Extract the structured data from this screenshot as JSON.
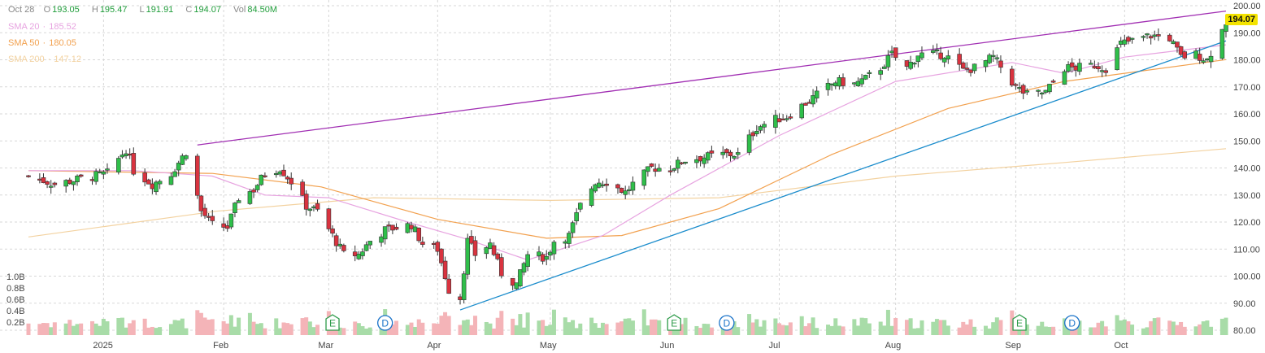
{
  "header": {
    "date": "Oct 28",
    "open_label": "O",
    "open": "193.05",
    "high_label": "H",
    "high": "195.47",
    "low_label": "L",
    "low": "191.91",
    "close_label": "C",
    "close": "194.07",
    "vol_label": "Vol",
    "vol": "84.50M"
  },
  "indicators": [
    {
      "label": "SMA 20",
      "value": "185.52",
      "color": "#e7a3e0"
    },
    {
      "label": "SMA 50",
      "value": "180.05",
      "color": "#f2a14f"
    },
    {
      "label": "SMA 200",
      "value": "147.12",
      "color": "#f3d2a0"
    }
  ],
  "last_price_label": "194.07",
  "colors": {
    "up": "#2fbf4a",
    "down": "#d9333f",
    "vol_up": "#a8dca8",
    "vol_down": "#f4b4b8",
    "resistance": "#a12fb3",
    "support": "#1a8ccc",
    "grid": "#d7d7d7"
  },
  "chart_data": {
    "type": "candlestick",
    "y_axis": {
      "min": 80,
      "max": 200,
      "ticks": [
        "80.00",
        "90.00",
        "100.00",
        "110.00",
        "120.00",
        "130.00",
        "140.00",
        "150.00",
        "160.00",
        "170.00",
        "180.00",
        "190.00",
        "200.00"
      ]
    },
    "volume_axis": {
      "ticks": [
        "0.2B",
        "0.4B",
        "0.6B",
        "0.8B",
        "1.0B"
      ]
    },
    "x_labels": [
      {
        "label": "2025",
        "date": "2025-01-02"
      },
      {
        "label": "Feb",
        "date": "2025-02-03"
      },
      {
        "label": "Mar",
        "date": "2025-03-03"
      },
      {
        "label": "Apr",
        "date": "2025-04-01"
      },
      {
        "label": "May",
        "date": "2025-05-01"
      },
      {
        "label": "Jun",
        "date": "2025-06-02"
      },
      {
        "label": "Jul",
        "date": "2025-07-01"
      },
      {
        "label": "Aug",
        "date": "2025-08-01"
      },
      {
        "label": "Sep",
        "date": "2025-09-02"
      },
      {
        "label": "Oct",
        "date": "2025-10-01"
      }
    ],
    "close_path": [
      [
        "2024-12-13",
        137
      ],
      [
        "2024-12-20",
        134
      ],
      [
        "2024-12-27",
        136
      ],
      [
        "2025-01-03",
        138
      ],
      [
        "2025-01-08",
        147
      ],
      [
        "2025-01-10",
        139
      ],
      [
        "2025-01-15",
        134
      ],
      [
        "2025-01-20",
        138
      ],
      [
        "2025-01-24",
        146
      ],
      [
        "2025-01-28",
        124
      ],
      [
        "2025-01-31",
        119
      ],
      [
        "2025-02-04",
        118
      ],
      [
        "2025-02-07",
        129
      ],
      [
        "2025-02-11",
        132
      ],
      [
        "2025-02-14",
        138
      ],
      [
        "2025-02-18",
        140
      ],
      [
        "2025-02-21",
        135
      ],
      [
        "2025-02-25",
        126
      ],
      [
        "2025-02-28",
        124
      ],
      [
        "2025-03-04",
        115
      ],
      [
        "2025-03-07",
        108
      ],
      [
        "2025-03-11",
        108
      ],
      [
        "2025-03-14",
        113
      ],
      [
        "2025-03-18",
        117
      ],
      [
        "2025-03-21",
        118
      ],
      [
        "2025-03-25",
        119
      ],
      [
        "2025-03-28",
        112
      ],
      [
        "2025-04-01",
        110
      ],
      [
        "2025-04-04",
        95
      ],
      [
        "2025-04-07",
        92
      ],
      [
        "2025-04-09",
        113
      ],
      [
        "2025-04-11",
        108
      ],
      [
        "2025-04-15",
        112
      ],
      [
        "2025-04-18",
        101
      ],
      [
        "2025-04-22",
        97
      ],
      [
        "2025-04-25",
        108
      ],
      [
        "2025-04-30",
        107
      ],
      [
        "2025-05-02",
        113
      ],
      [
        "2025-05-06",
        115
      ],
      [
        "2025-05-09",
        126
      ],
      [
        "2025-05-13",
        135
      ],
      [
        "2025-05-16",
        135
      ],
      [
        "2025-05-21",
        131
      ],
      [
        "2025-05-23",
        134
      ],
      [
        "2025-05-28",
        140
      ],
      [
        "2025-06-02",
        140
      ],
      [
        "2025-06-06",
        143
      ],
      [
        "2025-06-11",
        144
      ],
      [
        "2025-06-16",
        145
      ],
      [
        "2025-06-20",
        145
      ],
      [
        "2025-06-25",
        155
      ],
      [
        "2025-06-30",
        158
      ],
      [
        "2025-07-03",
        159
      ],
      [
        "2025-07-08",
        164
      ],
      [
        "2025-07-11",
        167
      ],
      [
        "2025-07-16",
        172
      ],
      [
        "2025-07-21",
        171
      ],
      [
        "2025-07-24",
        173
      ],
      [
        "2025-07-28",
        177
      ],
      [
        "2025-07-31",
        182
      ],
      [
        "2025-08-04",
        177
      ],
      [
        "2025-08-07",
        182
      ],
      [
        "2025-08-11",
        182
      ],
      [
        "2025-08-14",
        182
      ],
      [
        "2025-08-19",
        176
      ],
      [
        "2025-08-22",
        177
      ],
      [
        "2025-08-27",
        181
      ],
      [
        "2025-09-02",
        170
      ],
      [
        "2025-09-05",
        167
      ],
      [
        "2025-09-10",
        168
      ],
      [
        "2025-09-15",
        177
      ],
      [
        "2025-09-18",
        177
      ],
      [
        "2025-09-23",
        178
      ],
      [
        "2025-09-26",
        177
      ],
      [
        "2025-09-30",
        186
      ],
      [
        "2025-10-03",
        187
      ],
      [
        "2025-10-08",
        189
      ],
      [
        "2025-10-13",
        188
      ],
      [
        "2025-10-16",
        181
      ],
      [
        "2025-10-20",
        182
      ],
      [
        "2025-10-23",
        180
      ],
      [
        "2025-10-27",
        191
      ],
      [
        "2025-10-28",
        194.07
      ]
    ],
    "sma20": [
      [
        "2024-12-13",
        139
      ],
      [
        "2025-01-10",
        139
      ],
      [
        "2025-01-31",
        137
      ],
      [
        "2025-02-14",
        130
      ],
      [
        "2025-03-03",
        129
      ],
      [
        "2025-03-24",
        120
      ],
      [
        "2025-04-08",
        114
      ],
      [
        "2025-04-25",
        106
      ],
      [
        "2025-05-15",
        115
      ],
      [
        "2025-06-02",
        130
      ],
      [
        "2025-07-01",
        152
      ],
      [
        "2025-08-01",
        172
      ],
      [
        "2025-09-01",
        179
      ],
      [
        "2025-09-15",
        175
      ],
      [
        "2025-10-01",
        181
      ],
      [
        "2025-10-28",
        185.52
      ]
    ],
    "sma50": [
      [
        "2024-12-13",
        139
      ],
      [
        "2025-01-31",
        138
      ],
      [
        "2025-03-01",
        133
      ],
      [
        "2025-04-01",
        121
      ],
      [
        "2025-04-30",
        114
      ],
      [
        "2025-05-20",
        115
      ],
      [
        "2025-06-15",
        125
      ],
      [
        "2025-07-15",
        145
      ],
      [
        "2025-08-15",
        162
      ],
      [
        "2025-09-15",
        172
      ],
      [
        "2025-10-28",
        180.05
      ]
    ],
    "sma200": [
      [
        "2024-12-13",
        114.5
      ],
      [
        "2025-02-01",
        124
      ],
      [
        "2025-03-15",
        129
      ],
      [
        "2025-05-01",
        128
      ],
      [
        "2025-06-15",
        129
      ],
      [
        "2025-08-01",
        137
      ],
      [
        "2025-09-15",
        142
      ],
      [
        "2025-10-28",
        147.12
      ]
    ],
    "trendlines": [
      {
        "name": "resistance",
        "from": [
          "2025-01-27",
          148.5
        ],
        "to": [
          "2025-10-28",
          198
        ]
      },
      {
        "name": "support",
        "from": [
          "2025-04-07",
          87.5
        ],
        "to": [
          "2025-10-28",
          187
        ]
      }
    ],
    "events": [
      {
        "type": "E",
        "date": "2025-03-04"
      },
      {
        "type": "D",
        "date": "2025-03-18"
      },
      {
        "type": "E",
        "date": "2025-06-03"
      },
      {
        "type": "D",
        "date": "2025-06-17"
      },
      {
        "type": "E",
        "date": "2025-09-03"
      },
      {
        "type": "D",
        "date": "2025-09-17"
      }
    ]
  }
}
